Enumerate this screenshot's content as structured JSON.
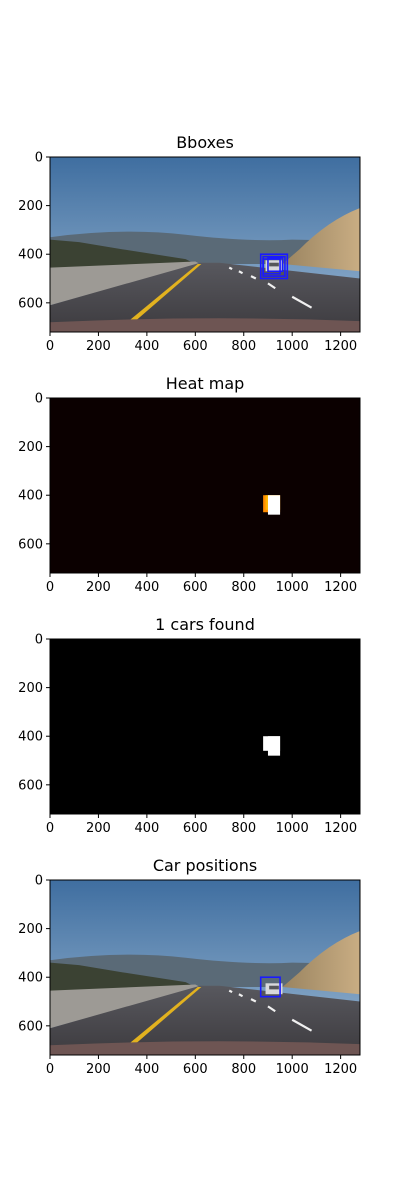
{
  "figure": {
    "panels": [
      {
        "title": "Bboxes",
        "kind": "road-photo",
        "boxes": [
          {
            "x0": 870,
            "y0": 400,
            "x1": 980,
            "y1": 500,
            "color": "#1a1aff"
          },
          {
            "x0": 880,
            "y0": 410,
            "x1": 970,
            "y1": 490,
            "color": "#1a1aff"
          },
          {
            "x0": 880,
            "y0": 420,
            "x1": 950,
            "y1": 480,
            "color": "#1a1aff"
          },
          {
            "x0": 900,
            "y0": 415,
            "x1": 960,
            "y1": 470,
            "color": "#1a1aff"
          }
        ]
      },
      {
        "title": "Heat map",
        "kind": "heatmap",
        "background": "#0b0000",
        "blobs": [
          {
            "x0": 880,
            "y0": 400,
            "x1": 950,
            "y1": 470,
            "color": "#ff8c00"
          },
          {
            "x0": 890,
            "y0": 400,
            "x1": 950,
            "y1": 460,
            "color": "#ffb400"
          },
          {
            "x0": 900,
            "y0": 400,
            "x1": 950,
            "y1": 480,
            "color": "#ffffff"
          }
        ]
      },
      {
        "title": "1 cars found",
        "kind": "labels",
        "background": "#000000",
        "blobs": [
          {
            "x0": 880,
            "y0": 400,
            "x1": 950,
            "y1": 460,
            "color": "#ffffff"
          },
          {
            "x0": 900,
            "y0": 400,
            "x1": 950,
            "y1": 480,
            "color": "#ffffff"
          }
        ]
      },
      {
        "title": "Car positions",
        "kind": "road-photo",
        "boxes": [
          {
            "x0": 870,
            "y0": 400,
            "x1": 950,
            "y1": 480,
            "color": "#1a1aff"
          }
        ]
      }
    ],
    "axes": {
      "xlim": [
        0,
        1280
      ],
      "ylim": [
        720,
        0
      ],
      "xticks": [
        0,
        200,
        400,
        600,
        800,
        1000,
        1200
      ],
      "yticks": [
        0,
        200,
        400,
        600
      ]
    }
  }
}
